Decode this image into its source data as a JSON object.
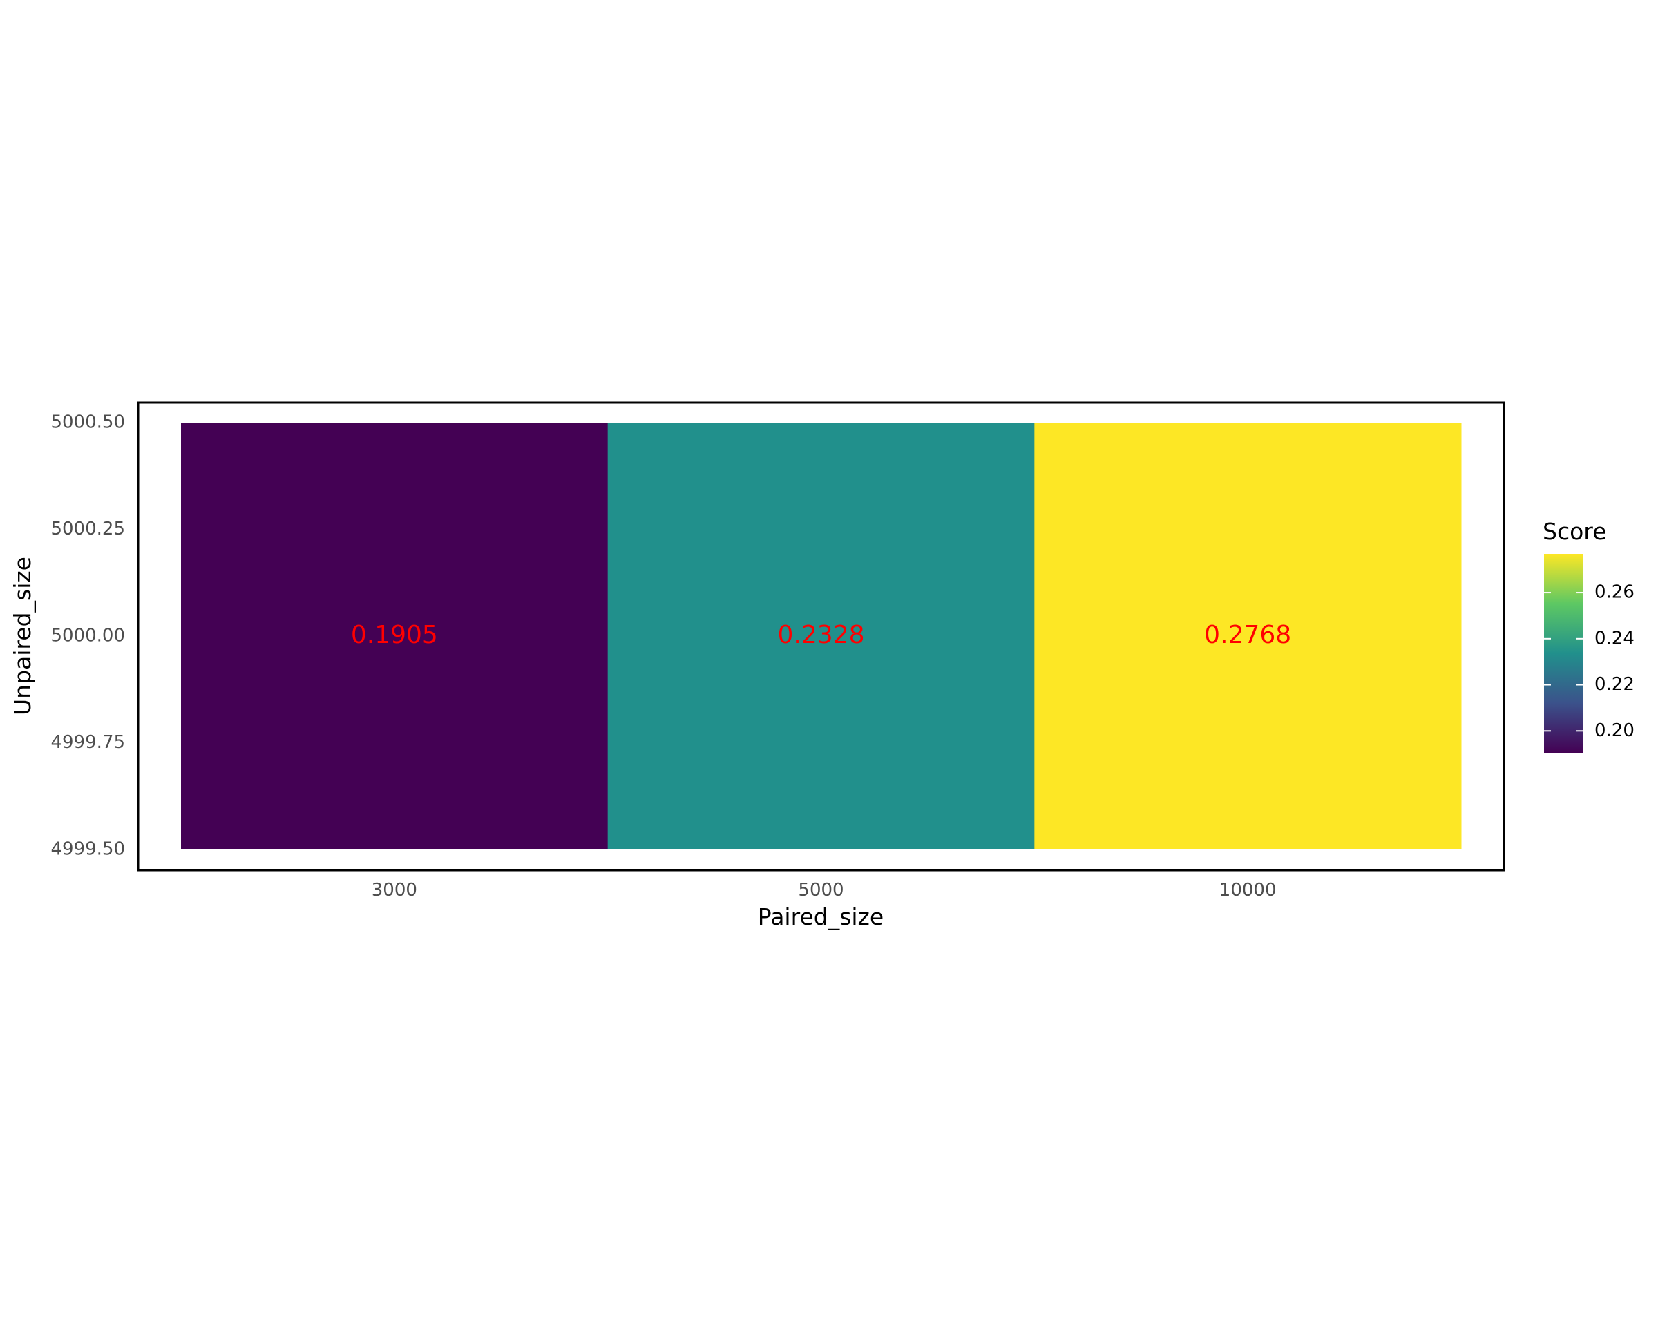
{
  "chart_data": {
    "type": "heatmap",
    "title": "",
    "xlabel": "Paired_size",
    "ylabel": "Unpaired_size",
    "x_categories": [
      "3000",
      "5000",
      "10000"
    ],
    "y_ticks": [
      "4999.50",
      "4999.75",
      "5000.00",
      "5000.25",
      "5000.50"
    ],
    "ylim": [
      4999.5,
      5000.5
    ],
    "cells": [
      {
        "x": "3000",
        "y": 5000,
        "value": 0.1905,
        "label": "0.1905",
        "color": "#440154"
      },
      {
        "x": "5000",
        "y": 5000,
        "value": 0.2328,
        "label": "0.2328",
        "color": "#21908C"
      },
      {
        "x": "10000",
        "y": 5000,
        "value": 0.2768,
        "label": "0.2768",
        "color": "#FDE725"
      }
    ],
    "label_color": "#FF0000",
    "legend": {
      "title": "Score",
      "position": "right",
      "min": 0.1905,
      "max": 0.2768,
      "ticks": [
        "0.20",
        "0.22",
        "0.24",
        "0.26"
      ],
      "tick_values": [
        0.2,
        0.22,
        0.24,
        0.26
      ],
      "colors": [
        "#440154",
        "#3B528B",
        "#21908C",
        "#5DC863",
        "#FDE725"
      ]
    },
    "grid": false,
    "panel_border": true
  }
}
